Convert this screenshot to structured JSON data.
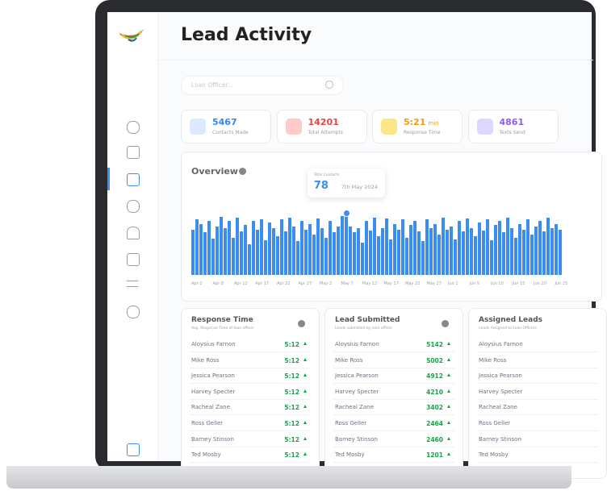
{
  "header": {
    "title": "Lead Activity"
  },
  "search": {
    "placeholder": "Loan Officer..."
  },
  "stats": [
    {
      "value": 5467,
      "label": "Contacts Made",
      "color": "#3b82f6",
      "bg": "#dbeafe"
    },
    {
      "value": 14201,
      "label": "Total Attempts",
      "color": "#ef4444",
      "bg": "#fecaca"
    },
    {
      "value": "5:21",
      "unit": "min",
      "label": "Response Time",
      "color": "#f59e0b",
      "bg": "#fde68a"
    },
    {
      "value": 4861,
      "label": "Texts Send",
      "color": "#8b5cf6",
      "bg": "#ddd6fe"
    }
  ],
  "overview": {
    "title": "Overview",
    "color": "#3b8def",
    "tooltip": {
      "label": "Total Contacts",
      "value": 78,
      "date": "7th May 2024"
    },
    "values": [
      58,
      72,
      66,
      55,
      70,
      47,
      62,
      75,
      60,
      70,
      48,
      74,
      56,
      65,
      40,
      70,
      58,
      72,
      45,
      68,
      60,
      50,
      72,
      56,
      74,
      62,
      44,
      70,
      58,
      66,
      52,
      73,
      60,
      48,
      70,
      55,
      62,
      76,
      78,
      62,
      55,
      60,
      42,
      70,
      57,
      74,
      50,
      60,
      73,
      46,
      66,
      58,
      72,
      48,
      64,
      70,
      56,
      44,
      72,
      60,
      66,
      52,
      74,
      58,
      62,
      46,
      70,
      56,
      73,
      60,
      50,
      68,
      57,
      72,
      45,
      64,
      70,
      55,
      74,
      60,
      48,
      66,
      58,
      72,
      52,
      62,
      70,
      56,
      74,
      60,
      66,
      58
    ],
    "categories": [
      "Apr 2",
      "Apr 8",
      "Apr 12",
      "Apr 17",
      "Apr 22",
      "Apr 27",
      "May 2",
      "May 7",
      "May 12",
      "May 17",
      "May 22",
      "May 27",
      "Jun 1",
      "Jun 5",
      "Jun 10",
      "Jun 15",
      "Jun 20",
      "Jun 25"
    ]
  },
  "tables": [
    {
      "title": "Response Time",
      "subtitle": "Avg. Response Time of loan officer",
      "rows": [
        [
          "Aloysius Farnon",
          "5:12"
        ],
        [
          "Mike Ross",
          "5:12"
        ],
        [
          "Jessica Pearson",
          "5:12"
        ],
        [
          "Harvey Specter",
          "5:12"
        ],
        [
          "Racheal Zane",
          "5:12"
        ],
        [
          "Ross Geller",
          "5:12"
        ],
        [
          "Barney Stinson",
          "5:12"
        ],
        [
          "Ted Mosby",
          "5:12"
        ]
      ]
    },
    {
      "title": "Lead Submitted",
      "subtitle": "Leads submitted by loan officer",
      "rows": [
        [
          "Aloysius Farnon",
          5142
        ],
        [
          "Mike Ross",
          5002
        ],
        [
          "Jessica Pearson",
          4912
        ],
        [
          "Harvey Specter",
          4210
        ],
        [
          "Racheal Zane",
          3402
        ],
        [
          "Ross Geller",
          2464
        ],
        [
          "Barney Stinson",
          2460
        ],
        [
          "Ted Mosby",
          1201
        ]
      ]
    },
    {
      "title": "Assigned Leads",
      "subtitle": "Leads Assigned to Loan Officers",
      "rows": [
        [
          "Aloysius Farnon"
        ],
        [
          "Mike Ross"
        ],
        [
          "Jessica Pearson"
        ],
        [
          "Harvey Specter"
        ],
        [
          "Racheal Zane"
        ],
        [
          "Ross Geller"
        ],
        [
          "Barney Stinson"
        ],
        [
          "Ted Mosby"
        ]
      ]
    }
  ]
}
